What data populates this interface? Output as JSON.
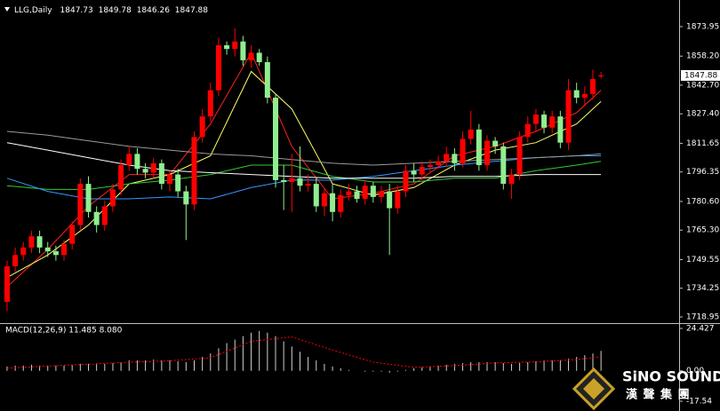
{
  "chart_data": [
    {
      "type": "candlestick",
      "title": "LLG,Daily",
      "open": [
        1727,
        1746,
        1752,
        1756,
        1762,
        1756,
        1754,
        1752,
        1758,
        1768,
        1790,
        1775,
        1768,
        1778,
        1787,
        1800,
        1806,
        1798,
        1796,
        1801,
        1790,
        1795,
        1786,
        1779,
        1815,
        1826,
        1840,
        1864,
        1862,
        1866,
        1856,
        1860,
        1855,
        1836,
        1792,
        1791,
        1793,
        1789,
        1790,
        1778,
        1785,
        1775,
        1784,
        1786,
        1782,
        1789,
        1783,
        1786,
        1777,
        1786,
        1797,
        1795,
        1799,
        1800,
        1802,
        1806,
        1801,
        1814,
        1819,
        1800,
        1813,
        1810,
        1790,
        1795,
        1815,
        1822,
        1827,
        1820,
        1826,
        1812,
        1840,
        1836,
        1838,
        1847.73
      ],
      "high": [
        1749,
        1756,
        1759,
        1765,
        1765,
        1759,
        1757,
        1760,
        1770,
        1793,
        1794,
        1778,
        1781,
        1790,
        1803,
        1810,
        1809,
        1801,
        1804,
        1803,
        1797,
        1798,
        1789,
        1818,
        1830,
        1844,
        1868,
        1866,
        1873,
        1869,
        1864,
        1862,
        1858,
        1838,
        1800,
        1806,
        1810,
        1795,
        1793,
        1788,
        1790,
        1787,
        1790,
        1789,
        1792,
        1791,
        1789,
        1790,
        1789,
        1800,
        1801,
        1802,
        1803,
        1805,
        1810,
        1809,
        1818,
        1829,
        1822,
        1816,
        1815,
        1812,
        1798,
        1818,
        1826,
        1830,
        1829,
        1829,
        1829,
        1846,
        1844,
        1842,
        1851,
        1849.78
      ],
      "low": [
        1722,
        1743,
        1749,
        1753,
        1753,
        1751,
        1749,
        1749,
        1755,
        1765,
        1772,
        1764,
        1765,
        1775,
        1784,
        1797,
        1795,
        1793,
        1793,
        1787,
        1786,
        1783,
        1760,
        1776,
        1812,
        1823,
        1837,
        1859,
        1858,
        1853,
        1852,
        1853,
        1833,
        1788,
        1776,
        1775,
        1786,
        1786,
        1775,
        1773,
        1770,
        1772,
        1781,
        1780,
        1779,
        1780,
        1780,
        1752,
        1774,
        1783,
        1791,
        1792,
        1796,
        1798,
        1799,
        1797,
        1799,
        1811,
        1797,
        1797,
        1806,
        1787,
        1782,
        1792,
        1812,
        1818,
        1817,
        1817,
        1809,
        1808,
        1833,
        1832,
        1835,
        1846.26
      ],
      "close": [
        1746,
        1752,
        1756,
        1762,
        1756,
        1754,
        1752,
        1758,
        1768,
        1790,
        1775,
        1768,
        1778,
        1787,
        1800,
        1806,
        1798,
        1796,
        1801,
        1790,
        1795,
        1786,
        1779,
        1815,
        1826,
        1840,
        1864,
        1862,
        1866,
        1856,
        1860,
        1855,
        1836,
        1792,
        1791,
        1793,
        1789,
        1790,
        1778,
        1785,
        1775,
        1784,
        1786,
        1782,
        1789,
        1783,
        1786,
        1777,
        1786,
        1797,
        1795,
        1799,
        1800,
        1802,
        1806,
        1801,
        1814,
        1819,
        1800,
        1813,
        1810,
        1790,
        1795,
        1815,
        1822,
        1827,
        1820,
        1826,
        1812,
        1840,
        1836,
        1838,
        1846,
        1847.88
      ],
      "up_color": "#ff0000",
      "down_color": "#90ee90",
      "lines": [
        {
          "color": "#ff2020",
          "x": [
            0,
            5,
            10,
            15,
            20,
            25,
            30,
            35,
            40,
            45,
            50,
            55,
            60,
            65,
            70,
            73
          ],
          "values": [
            1735,
            1755,
            1778,
            1795,
            1795,
            1822,
            1860,
            1810,
            1782,
            1785,
            1790,
            1805,
            1810,
            1818,
            1828,
            1840
          ]
        },
        {
          "color": "#ffff66",
          "x": [
            0,
            5,
            10,
            15,
            20,
            25,
            30,
            35,
            40,
            45,
            50,
            55,
            60,
            65,
            70,
            73
          ],
          "values": [
            1740,
            1752,
            1768,
            1790,
            1795,
            1805,
            1850,
            1830,
            1790,
            1784,
            1788,
            1800,
            1808,
            1812,
            1822,
            1834
          ]
        },
        {
          "color": "#33cc33",
          "x": [
            0,
            5,
            10,
            15,
            20,
            25,
            30,
            35,
            40,
            45,
            50,
            55,
            60,
            65,
            70,
            73
          ],
          "values": [
            1789,
            1787,
            1787,
            1790,
            1792,
            1795,
            1800,
            1800,
            1794,
            1791,
            1791,
            1793,
            1793,
            1797,
            1800,
            1802
          ]
        },
        {
          "color": "#3399ff",
          "x": [
            0,
            5,
            10,
            15,
            20,
            25,
            30,
            35,
            40,
            45,
            50,
            55,
            60,
            65,
            70,
            73
          ],
          "values": [
            1793,
            1786,
            1782,
            1782,
            1783,
            1782,
            1788,
            1792,
            1792,
            1794,
            1797,
            1800,
            1802,
            1804,
            1805,
            1805
          ]
        },
        {
          "color": "#9a9a9a",
          "x": [
            0,
            5,
            10,
            15,
            20,
            25,
            30,
            35,
            40,
            45,
            50,
            55,
            60,
            65,
            70,
            73
          ],
          "values": [
            1818,
            1816,
            1813,
            1810,
            1808,
            1806,
            1805,
            1803,
            1801,
            1800,
            1801,
            1802,
            1803,
            1804,
            1805,
            1806
          ]
        },
        {
          "color": "#ffffff",
          "x": [
            0,
            5,
            10,
            15,
            20,
            25,
            30,
            35,
            40,
            45,
            50,
            55,
            60,
            65,
            70,
            73
          ],
          "values": [
            1812,
            1808,
            1804,
            1800,
            1797,
            1796,
            1795,
            1794,
            1793,
            1793,
            1793,
            1794,
            1794,
            1795,
            1795,
            1795
          ]
        }
      ],
      "xlim": [
        -0.87,
        82.6
      ],
      "ylim": [
        1716.11,
        1888.17
      ],
      "yticks": [
        1873.95,
        {
          "value": 1858.2,
          "label": "1858.20"
        },
        {
          "value": 1842.7,
          "label": "1842.70"
        },
        {
          "value": 1827.4,
          "label": "1827.40"
        },
        1811.65,
        1796.35,
        {
          "value": 1780.6,
          "label": "1780.60"
        },
        {
          "value": 1765.3,
          "label": "1765.30"
        },
        1749.55,
        1734.25,
        1718.95
      ]
    },
    {
      "type": "macd",
      "title": "MACD(12,26,9) 11.485 8.080",
      "values": [
        2.5,
        3,
        3,
        3.5,
        3,
        3,
        3,
        3,
        3.5,
        4,
        4,
        4,
        4,
        4.5,
        5,
        6,
        6,
        6,
        6.5,
        6,
        6,
        5.5,
        5,
        6,
        8,
        10,
        13,
        16,
        18,
        20,
        22,
        23,
        22,
        20,
        17,
        14,
        11,
        8,
        6,
        4,
        2.5,
        1.5,
        0.5,
        0,
        -0.5,
        -0.5,
        -0.5,
        -1,
        -0.5,
        0.5,
        1.5,
        2,
        2.5,
        3,
        3.5,
        4,
        4.5,
        5,
        5,
        5,
        5,
        4.5,
        4,
        4.5,
        5,
        5.5,
        6,
        6,
        6,
        7,
        8,
        9,
        10,
        11.485
      ],
      "color": "#d0d0d0",
      "signal": {
        "color": "#ff0000",
        "x": [
          0,
          5,
          10,
          15,
          20,
          25,
          30,
          35,
          40,
          45,
          50,
          55,
          60,
          65,
          70,
          73
        ],
        "values": [
          1.5,
          2.8,
          3.8,
          5,
          5.8,
          7.5,
          17,
          19.5,
          12,
          5,
          2,
          3,
          4.5,
          5.2,
          6.5,
          8.08
        ]
      },
      "xlim": [
        -0.87,
        82.6
      ],
      "ylim": [
        -22.15,
        26.99
      ],
      "yticks": [
        24.427,
        {
          "value": 0,
          "label": "0.00"
        },
        -17.54
      ]
    }
  ],
  "logo": {
    "name": "SiNO SOUND",
    "tagline": "漢 聲 集 團"
  }
}
